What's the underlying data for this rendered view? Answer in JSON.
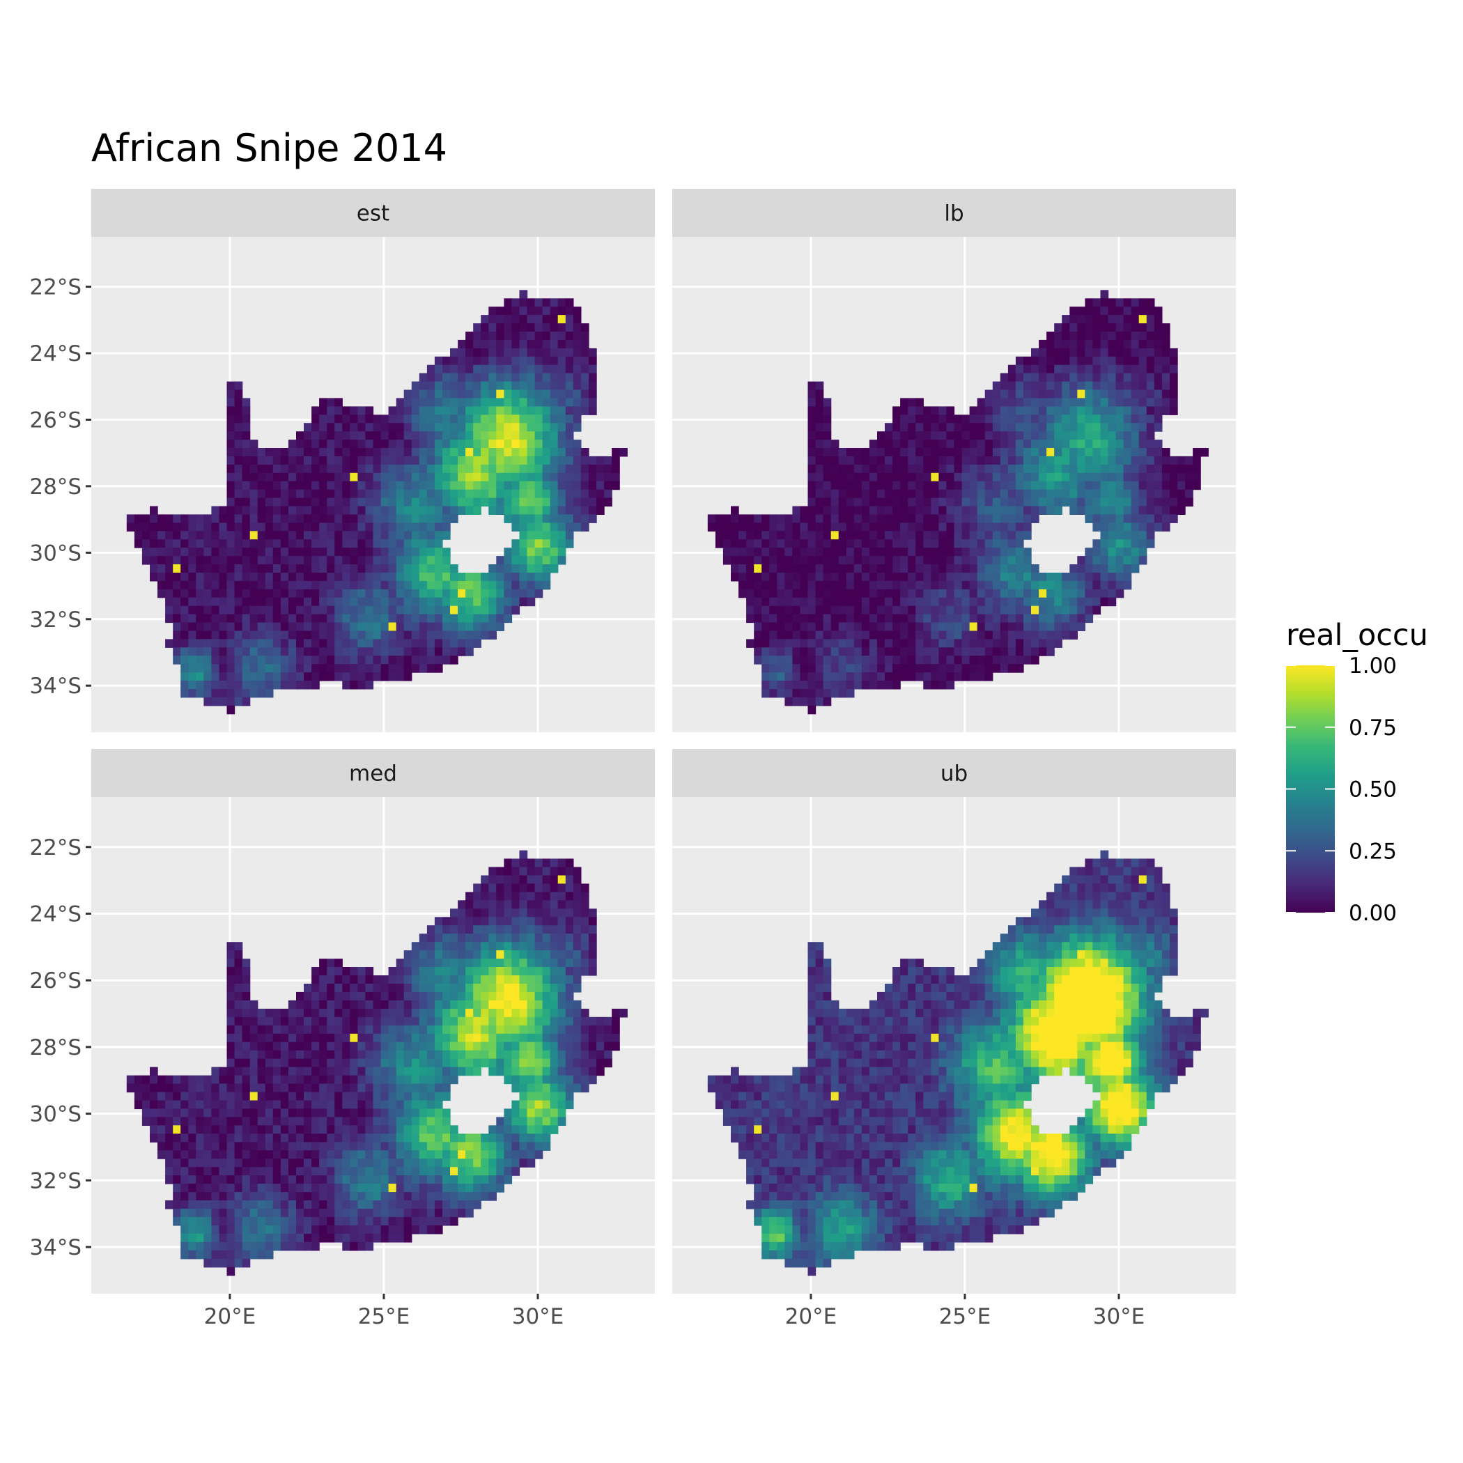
{
  "title": "African Snipe 2014",
  "facets": [
    {
      "label": "est"
    },
    {
      "label": "lb"
    },
    {
      "label": "med"
    },
    {
      "label": "ub"
    }
  ],
  "axes": {
    "x": {
      "range": [
        15.5,
        33.8
      ],
      "ticks": [
        20,
        25,
        30
      ],
      "tick_labels": [
        "20°E",
        "25°E",
        "30°E"
      ]
    },
    "y": {
      "range": [
        -35.4,
        -20.5
      ],
      "ticks": [
        -22,
        -24,
        -26,
        -28,
        -30,
        -32,
        -34
      ],
      "tick_labels": [
        "22°S",
        "24°S",
        "26°S",
        "28°S",
        "30°S",
        "32°S",
        "34°S"
      ]
    }
  },
  "legend": {
    "title": "real_occu",
    "ticks": [
      0,
      0.25,
      0.5,
      0.75,
      1
    ],
    "tick_labels": [
      "0.00",
      "0.25",
      "0.50",
      "0.75",
      "1.00"
    ],
    "placement": "right"
  },
  "colors": {
    "panel_bg": "#ebebeb",
    "strip_bg": "#d9d9d9",
    "grid": "#ffffff",
    "viridis": [
      "#440154",
      "#482878",
      "#3e4a89",
      "#31688e",
      "#26828e",
      "#1f9e89",
      "#35b779",
      "#6ece58",
      "#b5de2b",
      "#fde725"
    ]
  }
}
